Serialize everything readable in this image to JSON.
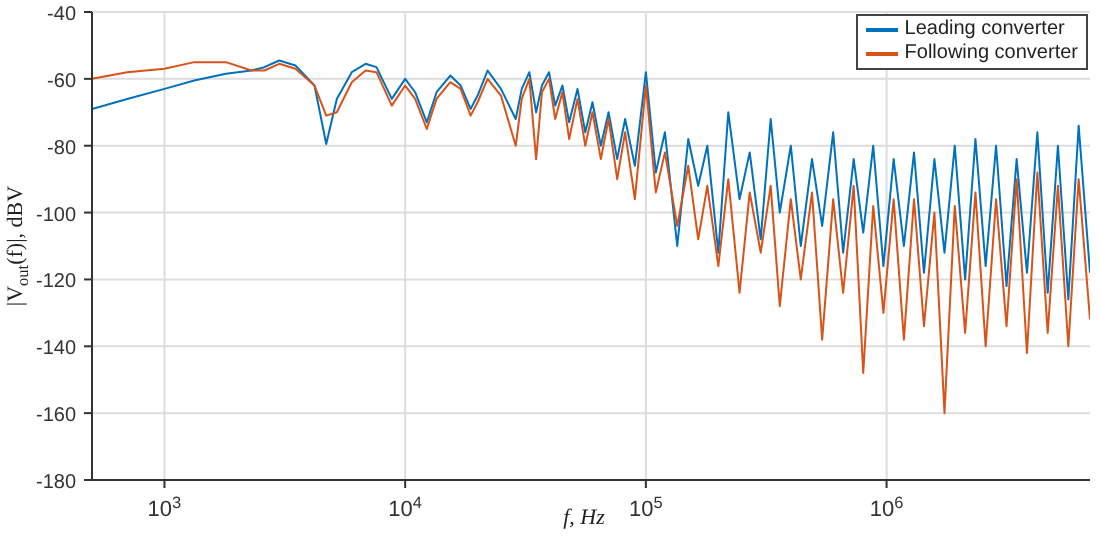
{
  "chart_data": {
    "type": "line",
    "xlabel": "f, Hz",
    "ylabel": "|V$_{out}$(f)|, dBV",
    "x": [
      500,
      700,
      1000,
      1330,
      1800,
      2300,
      2600,
      3000,
      3500,
      4200,
      4700,
      5200,
      6000,
      6850,
      7600,
      8800,
      10000,
      11000,
      12300,
      13500,
      15400,
      17000,
      18700,
      20000,
      22000,
      25000,
      28800,
      30500,
      32800,
      35000,
      37000,
      39600,
      42000,
      45000,
      48000,
      52000,
      56000,
      60000,
      65000,
      70000,
      76000,
      82000,
      90000,
      100000,
      110000,
      120000,
      135000,
      150000,
      165000,
      180000,
      200000,
      220000,
      245000,
      270000,
      300000,
      330000,
      360000,
      400000,
      440000,
      490000,
      540000,
      600000,
      660000,
      730000,
      800000,
      880000,
      970000,
      1070000,
      1180000,
      1300000,
      1430000,
      1580000,
      1740000,
      1920000,
      2120000,
      2340000,
      2580000,
      2850000,
      3150000,
      3470000,
      3830000,
      4230000,
      4670000,
      5150000,
      5690000,
      6280000,
      7000000
    ],
    "series": [
      {
        "name": "Leading converter",
        "color": "#0072bd",
        "values": [
          -69,
          -66,
          -63,
          -60.5,
          -58.5,
          -57.5,
          -56.5,
          -54.5,
          -56,
          -62,
          -79.5,
          -66,
          -58,
          -55.5,
          -56.5,
          -66,
          -60,
          -64,
          -73,
          -64,
          -59,
          -62,
          -69,
          -65,
          -57.5,
          -63,
          -72,
          -63,
          -58,
          -70,
          -62,
          -58,
          -68,
          -62,
          -73,
          -63,
          -76,
          -67,
          -80,
          -70,
          -84,
          -72,
          -86,
          -58,
          -88,
          -76,
          -110,
          -78,
          -92,
          -80,
          -112,
          -70,
          -96,
          -82,
          -108,
          -72,
          -100,
          -80,
          -110,
          -84,
          -104,
          -76,
          -112,
          -84,
          -106,
          -80,
          -116,
          -84,
          -110,
          -82,
          -118,
          -84,
          -112,
          -80,
          -120,
          -78,
          -116,
          -80,
          -122,
          -84,
          -118,
          -76,
          -124,
          -80,
          -126,
          -74,
          -118
        ]
      },
      {
        "name": "Following converter",
        "color": "#d95319",
        "values": [
          -60,
          -58,
          -57,
          -55,
          -55,
          -57.5,
          -57.5,
          -55.5,
          -57,
          -62,
          -71,
          -70,
          -61,
          -57.5,
          -58,
          -68,
          -62,
          -66,
          -75,
          -66,
          -61,
          -63,
          -71,
          -67,
          -60,
          -65,
          -80,
          -66,
          -60,
          -84,
          -64,
          -60,
          -72,
          -64,
          -78,
          -66,
          -80,
          -70,
          -84,
          -72,
          -90,
          -76,
          -96,
          -62,
          -94,
          -82,
          -104,
          -86,
          -108,
          -92,
          -116,
          -90,
          -124,
          -94,
          -112,
          -92,
          -128,
          -96,
          -120,
          -94,
          -138,
          -96,
          -124,
          -92,
          -148,
          -98,
          -130,
          -96,
          -138,
          -96,
          -134,
          -100,
          -160,
          -98,
          -136,
          -94,
          -140,
          -96,
          -134,
          -90,
          -142,
          -88,
          -136,
          -92,
          -140,
          -90,
          -132
        ]
      }
    ],
    "log": "x",
    "xlim": [
      500,
      7000000
    ],
    "xticks": [
      {
        "value": 1000,
        "label": "10$^{3}$"
      },
      {
        "value": 10000,
        "label": "10$^{4}$"
      },
      {
        "value": 100000,
        "label": "10$^{5}$"
      },
      {
        "value": 1000000,
        "label": "10$^{6}$"
      }
    ],
    "ylim": [
      -180,
      -40
    ],
    "yticks": [
      -180,
      -160,
      -140,
      -120,
      -100,
      -80,
      -60,
      -40
    ],
    "grid": true,
    "legend": "top right",
    "line_style": "solid",
    "marker": "none"
  }
}
